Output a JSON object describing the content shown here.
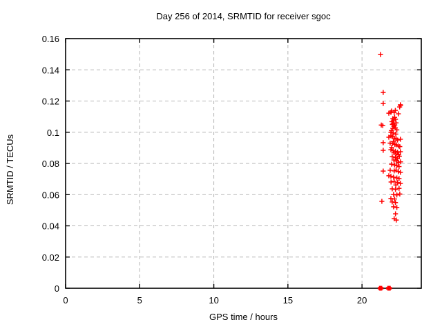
{
  "header": {
    "title": "Day 256 of 2014, SRMTID for receiver sgoc"
  },
  "chart_data": {
    "type": "scatter",
    "title": "Day 256 of 2014, SRMTID for receiver sgoc",
    "xlabel": "GPS time / hours",
    "ylabel": "SRMTID / TECUs",
    "xlim": [
      0,
      24
    ],
    "ylim": [
      0,
      0.16
    ],
    "xticks": [
      0,
      5,
      10,
      15,
      20
    ],
    "xtick_labels": [
      "0",
      "5",
      "10",
      "15",
      "20"
    ],
    "yticks": [
      0,
      0.02,
      0.04,
      0.06,
      0.08,
      0.1,
      0.12,
      0.14,
      0.16
    ],
    "ytick_labels": [
      "0",
      "0.02",
      "0.04",
      "0.06",
      "0.08",
      "0.1",
      "0.12",
      "0.14",
      "0.16"
    ],
    "grid": true,
    "legend_position": "none",
    "marker": "plus",
    "marker_color": "#ff0000",
    "grid_color": "#b5b5b5",
    "frame_color": "#000000",
    "series": [
      {
        "name": "SRMTID",
        "points": [
          [
            21.25,
            0.1498
          ],
          [
            21.43,
            0.1255
          ],
          [
            21.43,
            0.1184
          ],
          [
            22.59,
            0.1176
          ],
          [
            22.54,
            0.1162
          ],
          [
            22.6,
            0.1172
          ],
          [
            22.0,
            0.1136
          ],
          [
            22.25,
            0.114
          ],
          [
            21.95,
            0.1127
          ],
          [
            22.17,
            0.1127
          ],
          [
            22.45,
            0.1118
          ],
          [
            21.81,
            0.1122
          ],
          [
            22.08,
            0.1087
          ],
          [
            22.26,
            0.1083
          ],
          [
            22.13,
            0.1074
          ],
          [
            22.2,
            0.1095
          ],
          [
            22.02,
            0.1068
          ],
          [
            22.1,
            0.1058
          ],
          [
            22.3,
            0.106
          ],
          [
            22.05,
            0.105
          ],
          [
            21.3,
            0.1046
          ],
          [
            21.4,
            0.1043
          ],
          [
            22.21,
            0.1046
          ],
          [
            22.15,
            0.1038
          ],
          [
            22.08,
            0.1025
          ],
          [
            22.25,
            0.1028
          ],
          [
            22.35,
            0.1015
          ],
          [
            21.98,
            0.101
          ],
          [
            21.95,
            0.0999
          ],
          [
            22.1,
            0.0995
          ],
          [
            22.28,
            0.0988
          ],
          [
            21.95,
            0.0977
          ],
          [
            22.05,
            0.0972
          ],
          [
            21.81,
            0.0968
          ],
          [
            22.18,
            0.0962
          ],
          [
            22.3,
            0.0958
          ],
          [
            22.59,
            0.0955
          ],
          [
            22.4,
            0.095
          ],
          [
            22.12,
            0.094
          ],
          [
            21.43,
            0.0933
          ],
          [
            21.9,
            0.093
          ],
          [
            22.05,
            0.0928
          ],
          [
            22.22,
            0.0922
          ],
          [
            22.31,
            0.0919
          ],
          [
            22.45,
            0.0912
          ],
          [
            22.55,
            0.0908
          ],
          [
            22.0,
            0.0902
          ],
          [
            21.43,
            0.0884
          ],
          [
            21.95,
            0.0888
          ],
          [
            22.1,
            0.0882
          ],
          [
            22.25,
            0.0878
          ],
          [
            22.4,
            0.0872
          ],
          [
            22.59,
            0.0875
          ],
          [
            22.15,
            0.0868
          ],
          [
            22.3,
            0.086
          ],
          [
            22.48,
            0.0855
          ],
          [
            22.04,
            0.0843
          ],
          [
            22.26,
            0.0838
          ],
          [
            22.4,
            0.0831
          ],
          [
            22.52,
            0.0846
          ],
          [
            22.15,
            0.0822
          ],
          [
            22.33,
            0.0815
          ],
          [
            22.46,
            0.0806
          ],
          [
            22.6,
            0.081
          ],
          [
            22.0,
            0.0795
          ],
          [
            22.2,
            0.079
          ],
          [
            22.35,
            0.0786
          ],
          [
            22.5,
            0.078
          ],
          [
            21.43,
            0.0751
          ],
          [
            21.9,
            0.0756
          ],
          [
            22.17,
            0.0752
          ],
          [
            22.3,
            0.0757
          ],
          [
            22.45,
            0.0748
          ],
          [
            22.59,
            0.0743
          ],
          [
            21.81,
            0.0721
          ],
          [
            21.95,
            0.0718
          ],
          [
            22.13,
            0.0712
          ],
          [
            22.35,
            0.0707
          ],
          [
            22.5,
            0.0703
          ],
          [
            22.17,
            0.0685
          ],
          [
            21.96,
            0.0681
          ],
          [
            22.4,
            0.0677
          ],
          [
            22.59,
            0.0672
          ],
          [
            22.28,
            0.0662
          ],
          [
            22.04,
            0.0637
          ],
          [
            22.26,
            0.0634
          ],
          [
            22.5,
            0.064
          ],
          [
            22.13,
            0.0601
          ],
          [
            22.35,
            0.0598
          ],
          [
            22.55,
            0.0604
          ],
          [
            21.34,
            0.0557
          ],
          [
            21.95,
            0.0575
          ],
          [
            22.2,
            0.0572
          ],
          [
            22.04,
            0.0553
          ],
          [
            22.26,
            0.0549
          ],
          [
            22.13,
            0.0522
          ],
          [
            22.35,
            0.0518
          ],
          [
            22.26,
            0.0477
          ],
          [
            22.17,
            0.0446
          ],
          [
            22.31,
            0.0437
          ]
        ],
        "zero_baseline_points": [
          [
            21.22,
            0.0
          ],
          [
            21.29,
            0.0
          ],
          [
            21.78,
            0.0
          ],
          [
            21.86,
            0.0
          ]
        ]
      }
    ]
  }
}
